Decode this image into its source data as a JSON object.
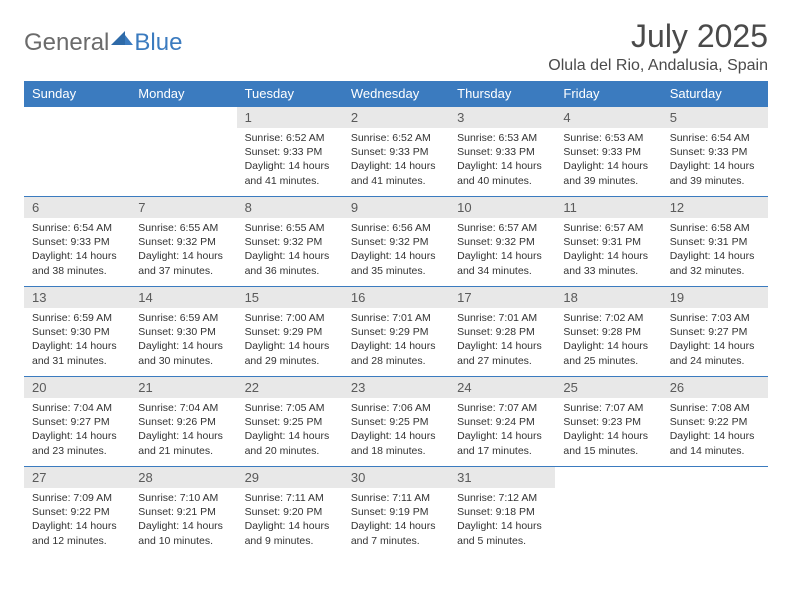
{
  "brand": {
    "word1": "General",
    "word2": "Blue"
  },
  "title": "July 2025",
  "location": "Olula del Rio, Andalusia, Spain",
  "colors": {
    "header_bg": "#3b7bbf",
    "header_fg": "#ffffff",
    "daynum_bg": "#e8e8e8",
    "rule": "#3b7bbf",
    "logo_gray": "#6b6b6b",
    "logo_blue": "#3b7bbf"
  },
  "weekdays": [
    "Sunday",
    "Monday",
    "Tuesday",
    "Wednesday",
    "Thursday",
    "Friday",
    "Saturday"
  ],
  "weeks": [
    [
      {
        "n": "",
        "sr": "",
        "ss": "",
        "dl": ""
      },
      {
        "n": "",
        "sr": "",
        "ss": "",
        "dl": ""
      },
      {
        "n": "1",
        "sr": "Sunrise: 6:52 AM",
        "ss": "Sunset: 9:33 PM",
        "dl": "Daylight: 14 hours and 41 minutes."
      },
      {
        "n": "2",
        "sr": "Sunrise: 6:52 AM",
        "ss": "Sunset: 9:33 PM",
        "dl": "Daylight: 14 hours and 41 minutes."
      },
      {
        "n": "3",
        "sr": "Sunrise: 6:53 AM",
        "ss": "Sunset: 9:33 PM",
        "dl": "Daylight: 14 hours and 40 minutes."
      },
      {
        "n": "4",
        "sr": "Sunrise: 6:53 AM",
        "ss": "Sunset: 9:33 PM",
        "dl": "Daylight: 14 hours and 39 minutes."
      },
      {
        "n": "5",
        "sr": "Sunrise: 6:54 AM",
        "ss": "Sunset: 9:33 PM",
        "dl": "Daylight: 14 hours and 39 minutes."
      }
    ],
    [
      {
        "n": "6",
        "sr": "Sunrise: 6:54 AM",
        "ss": "Sunset: 9:33 PM",
        "dl": "Daylight: 14 hours and 38 minutes."
      },
      {
        "n": "7",
        "sr": "Sunrise: 6:55 AM",
        "ss": "Sunset: 9:32 PM",
        "dl": "Daylight: 14 hours and 37 minutes."
      },
      {
        "n": "8",
        "sr": "Sunrise: 6:55 AM",
        "ss": "Sunset: 9:32 PM",
        "dl": "Daylight: 14 hours and 36 minutes."
      },
      {
        "n": "9",
        "sr": "Sunrise: 6:56 AM",
        "ss": "Sunset: 9:32 PM",
        "dl": "Daylight: 14 hours and 35 minutes."
      },
      {
        "n": "10",
        "sr": "Sunrise: 6:57 AM",
        "ss": "Sunset: 9:32 PM",
        "dl": "Daylight: 14 hours and 34 minutes."
      },
      {
        "n": "11",
        "sr": "Sunrise: 6:57 AM",
        "ss": "Sunset: 9:31 PM",
        "dl": "Daylight: 14 hours and 33 minutes."
      },
      {
        "n": "12",
        "sr": "Sunrise: 6:58 AM",
        "ss": "Sunset: 9:31 PM",
        "dl": "Daylight: 14 hours and 32 minutes."
      }
    ],
    [
      {
        "n": "13",
        "sr": "Sunrise: 6:59 AM",
        "ss": "Sunset: 9:30 PM",
        "dl": "Daylight: 14 hours and 31 minutes."
      },
      {
        "n": "14",
        "sr": "Sunrise: 6:59 AM",
        "ss": "Sunset: 9:30 PM",
        "dl": "Daylight: 14 hours and 30 minutes."
      },
      {
        "n": "15",
        "sr": "Sunrise: 7:00 AM",
        "ss": "Sunset: 9:29 PM",
        "dl": "Daylight: 14 hours and 29 minutes."
      },
      {
        "n": "16",
        "sr": "Sunrise: 7:01 AM",
        "ss": "Sunset: 9:29 PM",
        "dl": "Daylight: 14 hours and 28 minutes."
      },
      {
        "n": "17",
        "sr": "Sunrise: 7:01 AM",
        "ss": "Sunset: 9:28 PM",
        "dl": "Daylight: 14 hours and 27 minutes."
      },
      {
        "n": "18",
        "sr": "Sunrise: 7:02 AM",
        "ss": "Sunset: 9:28 PM",
        "dl": "Daylight: 14 hours and 25 minutes."
      },
      {
        "n": "19",
        "sr": "Sunrise: 7:03 AM",
        "ss": "Sunset: 9:27 PM",
        "dl": "Daylight: 14 hours and 24 minutes."
      }
    ],
    [
      {
        "n": "20",
        "sr": "Sunrise: 7:04 AM",
        "ss": "Sunset: 9:27 PM",
        "dl": "Daylight: 14 hours and 23 minutes."
      },
      {
        "n": "21",
        "sr": "Sunrise: 7:04 AM",
        "ss": "Sunset: 9:26 PM",
        "dl": "Daylight: 14 hours and 21 minutes."
      },
      {
        "n": "22",
        "sr": "Sunrise: 7:05 AM",
        "ss": "Sunset: 9:25 PM",
        "dl": "Daylight: 14 hours and 20 minutes."
      },
      {
        "n": "23",
        "sr": "Sunrise: 7:06 AM",
        "ss": "Sunset: 9:25 PM",
        "dl": "Daylight: 14 hours and 18 minutes."
      },
      {
        "n": "24",
        "sr": "Sunrise: 7:07 AM",
        "ss": "Sunset: 9:24 PM",
        "dl": "Daylight: 14 hours and 17 minutes."
      },
      {
        "n": "25",
        "sr": "Sunrise: 7:07 AM",
        "ss": "Sunset: 9:23 PM",
        "dl": "Daylight: 14 hours and 15 minutes."
      },
      {
        "n": "26",
        "sr": "Sunrise: 7:08 AM",
        "ss": "Sunset: 9:22 PM",
        "dl": "Daylight: 14 hours and 14 minutes."
      }
    ],
    [
      {
        "n": "27",
        "sr": "Sunrise: 7:09 AM",
        "ss": "Sunset: 9:22 PM",
        "dl": "Daylight: 14 hours and 12 minutes."
      },
      {
        "n": "28",
        "sr": "Sunrise: 7:10 AM",
        "ss": "Sunset: 9:21 PM",
        "dl": "Daylight: 14 hours and 10 minutes."
      },
      {
        "n": "29",
        "sr": "Sunrise: 7:11 AM",
        "ss": "Sunset: 9:20 PM",
        "dl": "Daylight: 14 hours and 9 minutes."
      },
      {
        "n": "30",
        "sr": "Sunrise: 7:11 AM",
        "ss": "Sunset: 9:19 PM",
        "dl": "Daylight: 14 hours and 7 minutes."
      },
      {
        "n": "31",
        "sr": "Sunrise: 7:12 AM",
        "ss": "Sunset: 9:18 PM",
        "dl": "Daylight: 14 hours and 5 minutes."
      },
      {
        "n": "",
        "sr": "",
        "ss": "",
        "dl": ""
      },
      {
        "n": "",
        "sr": "",
        "ss": "",
        "dl": ""
      }
    ]
  ]
}
